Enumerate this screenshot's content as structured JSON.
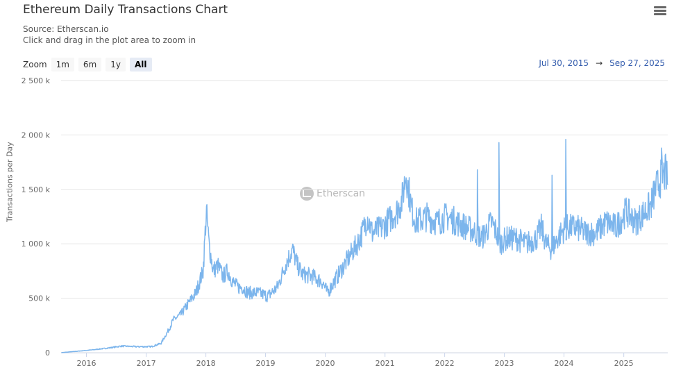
{
  "header": {
    "title": "Ethereum Daily Transactions Chart",
    "source": "Source: Etherscan.io",
    "hint": "Click and drag in the plot area to zoom in"
  },
  "zoom": {
    "label": "Zoom",
    "buttons": [
      "1m",
      "6m",
      "1y",
      "All"
    ],
    "active": "All"
  },
  "range": {
    "from": "Jul 30, 2015",
    "arrow": "→",
    "to": "Sep 27, 2025"
  },
  "watermark": "Etherscan",
  "colors": {
    "line": "#7cb5ec",
    "grid": "#e6e6e6",
    "axis_text": "#666666"
  },
  "chart_data": {
    "type": "line",
    "title": "Ethereum Daily Transactions Chart",
    "ylabel": "Transactions per Day",
    "ylim": [
      0,
      2500000
    ],
    "yticks": [
      0,
      500000,
      1000000,
      1500000,
      2000000,
      2500000
    ],
    "ytick_labels": [
      "0",
      "500 k",
      "1 000 k",
      "1 500 k",
      "2 000 k",
      "2 500 k"
    ],
    "xlim": [
      "2015-07-30",
      "2025-09-27"
    ],
    "xticks": [
      "2016-01-01",
      "2017-01-01",
      "2018-01-01",
      "2019-01-01",
      "2020-01-01",
      "2021-01-01",
      "2022-01-01",
      "2023-01-01",
      "2024-01-01",
      "2025-01-01"
    ],
    "xtick_labels": [
      "2016",
      "2017",
      "2018",
      "2019",
      "2020",
      "2021",
      "2022",
      "2023",
      "2024",
      "2025"
    ],
    "grid": true,
    "legend": "none",
    "series": [
      {
        "x": [
          "2015-08-01",
          "2015-11-01",
          "2016-02-01",
          "2016-05-01",
          "2016-08-01",
          "2016-11-01",
          "2017-02-01",
          "2017-04-01",
          "2017-05-15",
          "2017-06-15",
          "2017-08-01",
          "2017-09-15",
          "2017-11-01",
          "2017-12-15",
          "2018-01-04",
          "2018-01-20",
          "2018-02-15",
          "2018-03-15",
          "2018-04-15",
          "2018-05-15",
          "2018-06-15",
          "2018-07-15",
          "2018-08-15",
          "2018-09-15",
          "2018-11-15",
          "2019-01-15",
          "2019-03-15",
          "2019-05-01",
          "2019-06-15",
          "2019-07-15",
          "2019-08-15",
          "2019-10-15",
          "2019-12-15",
          "2020-01-15",
          "2020-03-15",
          "2020-05-15",
          "2020-07-15",
          "2020-08-15",
          "2020-09-15",
          "2020-10-15",
          "2020-12-15",
          "2021-01-15",
          "2021-03-15",
          "2021-04-15",
          "2021-05-10",
          "2021-06-15",
          "2021-07-15",
          "2021-09-15",
          "2021-11-15",
          "2022-01-15",
          "2022-03-15",
          "2022-05-15",
          "2022-07-15",
          "2022-08-15",
          "2022-10-15",
          "2022-11-15",
          "2022-12-01",
          "2023-01-15",
          "2023-03-15",
          "2023-05-15",
          "2023-07-15",
          "2023-08-15",
          "2023-09-15",
          "2023-10-15",
          "2023-12-15",
          "2024-01-10",
          "2024-03-15",
          "2024-05-15",
          "2024-07-15",
          "2024-09-15",
          "2024-11-15",
          "2025-01-15",
          "2025-03-15",
          "2025-05-15",
          "2025-06-15",
          "2025-07-15",
          "2025-08-15",
          "2025-09-15",
          "2025-09-27"
        ],
        "y": [
          1000,
          12000,
          25000,
          40000,
          60000,
          55000,
          55000,
          85000,
          200000,
          300000,
          350000,
          450000,
          550000,
          750000,
          1300000,
          1000000,
          750000,
          800000,
          700000,
          750000,
          650000,
          600000,
          600000,
          550000,
          550000,
          520000,
          600000,
          800000,
          950000,
          800000,
          720000,
          700000,
          650000,
          550000,
          700000,
          850000,
          1000000,
          1100000,
          1250000,
          1100000,
          1150000,
          1200000,
          1300000,
          1400000,
          1650000,
          1300000,
          1200000,
          1250000,
          1200000,
          1250000,
          1200000,
          1150000,
          1100000,
          1050000,
          1200000,
          1100000,
          1000000,
          1050000,
          1050000,
          1000000,
          1050000,
          1150000,
          1000000,
          950000,
          1100000,
          1150000,
          1150000,
          1100000,
          1100000,
          1200000,
          1150000,
          1300000,
          1200000,
          1300000,
          1350000,
          1500000,
          1600000,
          1650000,
          1550000
        ]
      }
    ],
    "spikes": [
      {
        "x": "2022-11-29",
        "y": 1930000
      },
      {
        "x": "2023-10-20",
        "y": 1630000
      },
      {
        "x": "2024-01-12",
        "y": 1960000
      },
      {
        "x": "2022-07-20",
        "y": 1680000
      },
      {
        "x": "2025-08-20",
        "y": 1880000
      }
    ]
  }
}
